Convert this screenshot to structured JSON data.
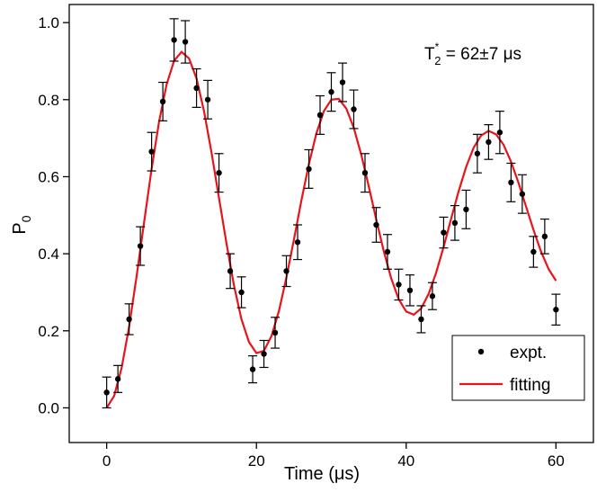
{
  "chart_data": {
    "type": "scatter",
    "x_label": "Time (μs)",
    "y_label": {
      "base": "P",
      "sub": "0"
    },
    "annotation": {
      "base": "T",
      "sub": "2",
      "sup": "*",
      "text": " = 62±7 μs"
    },
    "xlim": [
      -5,
      65
    ],
    "ylim": [
      -0.09,
      1.047
    ],
    "xticks": [
      0,
      20,
      40,
      60
    ],
    "yticks": [
      {
        "value": 0,
        "label": "0.0"
      },
      0.2,
      0.4,
      0.6,
      0.8,
      {
        "value": 1,
        "label": "1.0"
      }
    ],
    "legend": "lower right",
    "series": [
      {
        "name": "expt.",
        "type": "scatter",
        "color": "#000000",
        "x": [
          0,
          1.5,
          3,
          4.5,
          6,
          7.5,
          9,
          10.5,
          12,
          13.5,
          15,
          16.5,
          18,
          19.5,
          21,
          22.5,
          24,
          25.5,
          27,
          28.5,
          30,
          31.5,
          33,
          34.5,
          36,
          37.5,
          39,
          40.5,
          42,
          43.5,
          45,
          46.5,
          48,
          49.5,
          51,
          52.5,
          54,
          55.5,
          57,
          58.5,
          60
        ],
        "values": [
          0.04,
          0.075,
          0.23,
          0.42,
          0.665,
          0.795,
          0.955,
          0.95,
          0.83,
          0.8,
          0.61,
          0.355,
          0.3,
          0.1,
          0.14,
          0.195,
          0.355,
          0.43,
          0.62,
          0.76,
          0.82,
          0.845,
          0.775,
          0.61,
          0.475,
          0.405,
          0.32,
          0.305,
          0.23,
          0.29,
          0.455,
          0.48,
          0.515,
          0.66,
          0.69,
          0.715,
          0.585,
          0.555,
          0.405,
          0.445,
          0.255
        ],
        "errors": [
          0.04,
          0.035,
          0.04,
          0.05,
          0.05,
          0.05,
          0.055,
          0.055,
          0.05,
          0.05,
          0.05,
          0.045,
          0.04,
          0.035,
          0.035,
          0.04,
          0.04,
          0.045,
          0.05,
          0.05,
          0.05,
          0.05,
          0.05,
          0.05,
          0.045,
          0.045,
          0.04,
          0.04,
          0.035,
          0.035,
          0.04,
          0.045,
          0.05,
          0.05,
          0.045,
          0.055,
          0.05,
          0.05,
          0.04,
          0.045,
          0.04
        ]
      },
      {
        "name": "fitting",
        "type": "line",
        "color": "#e8141b",
        "x": [
          0,
          1,
          2,
          3,
          4,
          5,
          6,
          7,
          8,
          9,
          10,
          11,
          12,
          13,
          14,
          15,
          16,
          17,
          18,
          19,
          20,
          21,
          22,
          23,
          24,
          25,
          26,
          27,
          28,
          29,
          30,
          31,
          32,
          33,
          34,
          35,
          36,
          37,
          38,
          39,
          40,
          41,
          42,
          43,
          44,
          45,
          46,
          47,
          48,
          49,
          50,
          51,
          52,
          53,
          54,
          55,
          56,
          57,
          58,
          59,
          60
        ],
        "values": [
          0.0,
          0.031,
          0.104,
          0.211,
          0.342,
          0.482,
          0.62,
          0.743,
          0.839,
          0.901,
          0.924,
          0.907,
          0.855,
          0.77,
          0.663,
          0.545,
          0.427,
          0.318,
          0.23,
          0.171,
          0.142,
          0.148,
          0.186,
          0.251,
          0.338,
          0.436,
          0.538,
          0.632,
          0.712,
          0.77,
          0.8,
          0.802,
          0.777,
          0.727,
          0.657,
          0.575,
          0.489,
          0.407,
          0.336,
          0.282,
          0.25,
          0.242,
          0.258,
          0.296,
          0.351,
          0.418,
          0.491,
          0.562,
          0.625,
          0.675,
          0.707,
          0.719,
          0.71,
          0.683,
          0.639,
          0.584,
          0.523,
          0.462,
          0.406,
          0.361,
          0.33
        ]
      }
    ]
  }
}
